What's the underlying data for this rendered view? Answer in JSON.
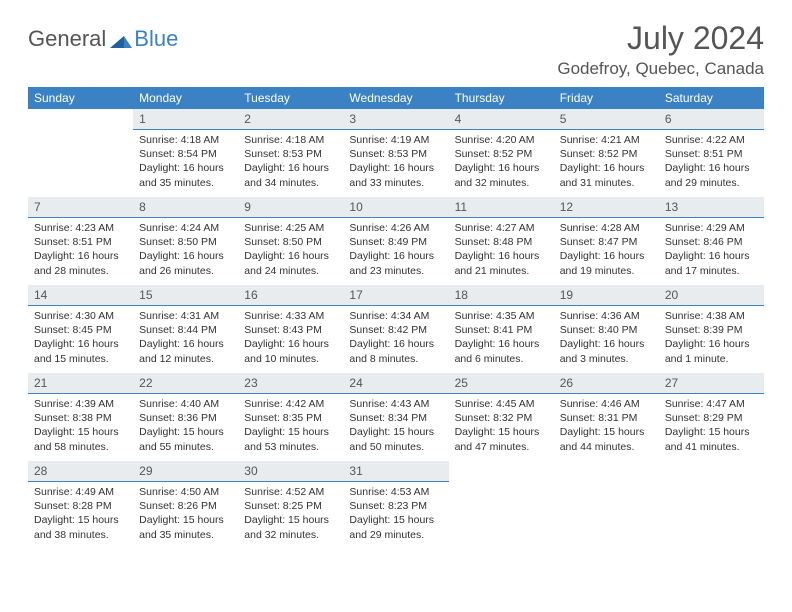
{
  "logo": {
    "general": "General",
    "blue": "Blue"
  },
  "header": {
    "month_title": "July 2024",
    "location": "Godefroy, Quebec, Canada"
  },
  "colors": {
    "header_bg": "#3b82c4",
    "header_text": "#ffffff",
    "daynum_bg": "#e9ecef",
    "daynum_border": "#3b82c4",
    "body_text": "#333333",
    "title_text": "#555555",
    "page_bg": "#ffffff"
  },
  "weekdays": [
    "Sunday",
    "Monday",
    "Tuesday",
    "Wednesday",
    "Thursday",
    "Friday",
    "Saturday"
  ],
  "start_offset": 1,
  "days": [
    {
      "n": 1,
      "sunrise": "4:18 AM",
      "sunset": "8:54 PM",
      "daylight": "16 hours and 35 minutes."
    },
    {
      "n": 2,
      "sunrise": "4:18 AM",
      "sunset": "8:53 PM",
      "daylight": "16 hours and 34 minutes."
    },
    {
      "n": 3,
      "sunrise": "4:19 AM",
      "sunset": "8:53 PM",
      "daylight": "16 hours and 33 minutes."
    },
    {
      "n": 4,
      "sunrise": "4:20 AM",
      "sunset": "8:52 PM",
      "daylight": "16 hours and 32 minutes."
    },
    {
      "n": 5,
      "sunrise": "4:21 AM",
      "sunset": "8:52 PM",
      "daylight": "16 hours and 31 minutes."
    },
    {
      "n": 6,
      "sunrise": "4:22 AM",
      "sunset": "8:51 PM",
      "daylight": "16 hours and 29 minutes."
    },
    {
      "n": 7,
      "sunrise": "4:23 AM",
      "sunset": "8:51 PM",
      "daylight": "16 hours and 28 minutes."
    },
    {
      "n": 8,
      "sunrise": "4:24 AM",
      "sunset": "8:50 PM",
      "daylight": "16 hours and 26 minutes."
    },
    {
      "n": 9,
      "sunrise": "4:25 AM",
      "sunset": "8:50 PM",
      "daylight": "16 hours and 24 minutes."
    },
    {
      "n": 10,
      "sunrise": "4:26 AM",
      "sunset": "8:49 PM",
      "daylight": "16 hours and 23 minutes."
    },
    {
      "n": 11,
      "sunrise": "4:27 AM",
      "sunset": "8:48 PM",
      "daylight": "16 hours and 21 minutes."
    },
    {
      "n": 12,
      "sunrise": "4:28 AM",
      "sunset": "8:47 PM",
      "daylight": "16 hours and 19 minutes."
    },
    {
      "n": 13,
      "sunrise": "4:29 AM",
      "sunset": "8:46 PM",
      "daylight": "16 hours and 17 minutes."
    },
    {
      "n": 14,
      "sunrise": "4:30 AM",
      "sunset": "8:45 PM",
      "daylight": "16 hours and 15 minutes."
    },
    {
      "n": 15,
      "sunrise": "4:31 AM",
      "sunset": "8:44 PM",
      "daylight": "16 hours and 12 minutes."
    },
    {
      "n": 16,
      "sunrise": "4:33 AM",
      "sunset": "8:43 PM",
      "daylight": "16 hours and 10 minutes."
    },
    {
      "n": 17,
      "sunrise": "4:34 AM",
      "sunset": "8:42 PM",
      "daylight": "16 hours and 8 minutes."
    },
    {
      "n": 18,
      "sunrise": "4:35 AM",
      "sunset": "8:41 PM",
      "daylight": "16 hours and 6 minutes."
    },
    {
      "n": 19,
      "sunrise": "4:36 AM",
      "sunset": "8:40 PM",
      "daylight": "16 hours and 3 minutes."
    },
    {
      "n": 20,
      "sunrise": "4:38 AM",
      "sunset": "8:39 PM",
      "daylight": "16 hours and 1 minute."
    },
    {
      "n": 21,
      "sunrise": "4:39 AM",
      "sunset": "8:38 PM",
      "daylight": "15 hours and 58 minutes."
    },
    {
      "n": 22,
      "sunrise": "4:40 AM",
      "sunset": "8:36 PM",
      "daylight": "15 hours and 55 minutes."
    },
    {
      "n": 23,
      "sunrise": "4:42 AM",
      "sunset": "8:35 PM",
      "daylight": "15 hours and 53 minutes."
    },
    {
      "n": 24,
      "sunrise": "4:43 AM",
      "sunset": "8:34 PM",
      "daylight": "15 hours and 50 minutes."
    },
    {
      "n": 25,
      "sunrise": "4:45 AM",
      "sunset": "8:32 PM",
      "daylight": "15 hours and 47 minutes."
    },
    {
      "n": 26,
      "sunrise": "4:46 AM",
      "sunset": "8:31 PM",
      "daylight": "15 hours and 44 minutes."
    },
    {
      "n": 27,
      "sunrise": "4:47 AM",
      "sunset": "8:29 PM",
      "daylight": "15 hours and 41 minutes."
    },
    {
      "n": 28,
      "sunrise": "4:49 AM",
      "sunset": "8:28 PM",
      "daylight": "15 hours and 38 minutes."
    },
    {
      "n": 29,
      "sunrise": "4:50 AM",
      "sunset": "8:26 PM",
      "daylight": "15 hours and 35 minutes."
    },
    {
      "n": 30,
      "sunrise": "4:52 AM",
      "sunset": "8:25 PM",
      "daylight": "15 hours and 32 minutes."
    },
    {
      "n": 31,
      "sunrise": "4:53 AM",
      "sunset": "8:23 PM",
      "daylight": "15 hours and 29 minutes."
    }
  ],
  "labels": {
    "sunrise": "Sunrise:",
    "sunset": "Sunset:",
    "daylight": "Daylight:"
  }
}
